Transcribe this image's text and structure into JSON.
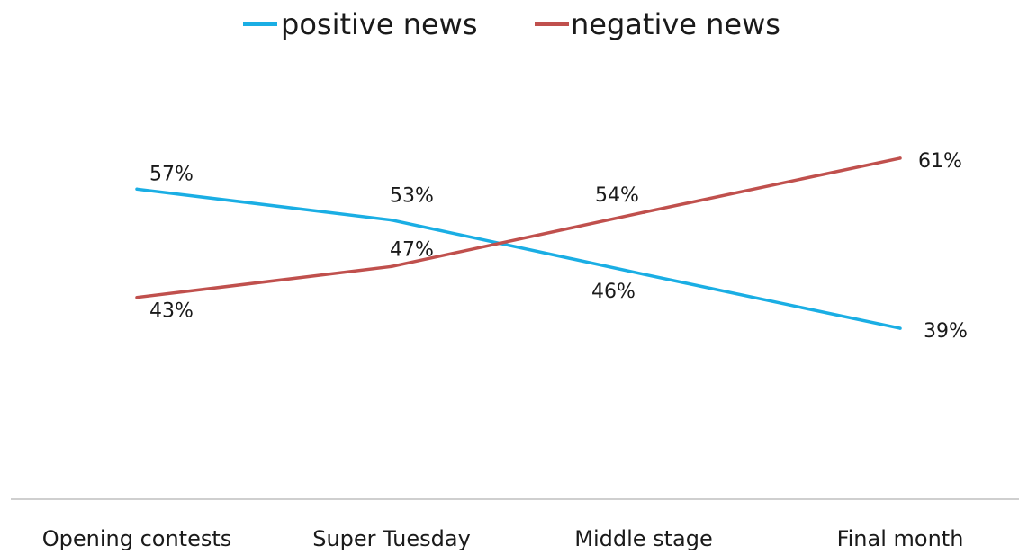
{
  "chart_data": {
    "type": "line",
    "categories": [
      "Opening contests",
      "Super Tuesday",
      "Middle stage",
      "Final month"
    ],
    "series": [
      {
        "name": "positive news",
        "values": [
          57,
          53,
          46,
          39
        ],
        "labels": [
          "57%",
          "53%",
          "46%",
          "39%"
        ],
        "color": "#1aaee4"
      },
      {
        "name": "negative news",
        "values": [
          43,
          47,
          54,
          61
        ],
        "labels": [
          "43%",
          "47%",
          "54%",
          "61%"
        ],
        "color": "#c0504d"
      }
    ],
    "legend_position": "top-center",
    "grid": false,
    "axis_line_color": "#bfbfbf"
  }
}
